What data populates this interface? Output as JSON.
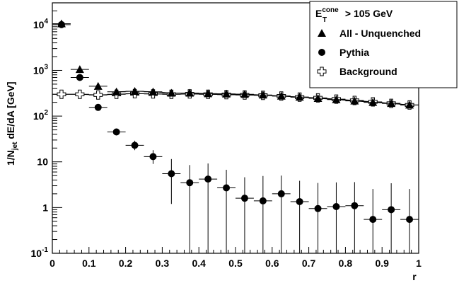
{
  "chart_data": {
    "type": "scatter",
    "title": "",
    "xlabel": "r",
    "ylabel_parts": {
      "pre": "1/N",
      "sub": "jet",
      "post": " dE/dA [GeV]"
    },
    "x_ticks": [
      "0",
      "0.1",
      "0.2",
      "0.3",
      "0.4",
      "0.5",
      "0.6",
      "0.7",
      "0.8",
      "0.9",
      "1"
    ],
    "y_ticks": [
      {
        "value": 0.1,
        "base": "10",
        "exp": "-1"
      },
      {
        "value": 1,
        "base": "1",
        "exp": ""
      },
      {
        "value": 10,
        "base": "10",
        "exp": ""
      },
      {
        "value": 100,
        "base": "10",
        "exp": "2"
      },
      {
        "value": 1000,
        "base": "10",
        "exp": "3"
      },
      {
        "value": 10000,
        "base": "10",
        "exp": "4"
      }
    ],
    "xlim": [
      0,
      1
    ],
    "ylim": [
      0.1,
      30000
    ],
    "y_scale": "log",
    "legend_placement": "top-right",
    "legend_header": {
      "pre": "E",
      "sup": "cone",
      "sub": "T",
      "post": " > 105 GeV"
    },
    "x": [
      0.025,
      0.075,
      0.125,
      0.175,
      0.225,
      0.275,
      0.325,
      0.375,
      0.425,
      0.475,
      0.525,
      0.575,
      0.625,
      0.675,
      0.725,
      0.775,
      0.825,
      0.875,
      0.925,
      0.975
    ],
    "series": [
      {
        "name": "All - Unquenched",
        "marker": "triangle",
        "values": [
          10500,
          1050,
          450,
          340,
          350,
          340,
          320,
          320,
          310,
          305,
          300,
          290,
          275,
          260,
          245,
          230,
          215,
          200,
          190,
          175
        ],
        "err_low": [
          0,
          0,
          0,
          0,
          0,
          0,
          0,
          0,
          0,
          0,
          0,
          0,
          0,
          0,
          0,
          0,
          0,
          0,
          0,
          0
        ],
        "err_high": [
          0,
          0,
          0,
          0,
          0,
          0,
          0,
          0,
          0,
          0,
          0,
          0,
          0,
          0,
          0,
          0,
          0,
          0,
          0,
          0
        ]
      },
      {
        "name": "Pythia",
        "marker": "circle",
        "values": [
          10000,
          700,
          155,
          45,
          23,
          13,
          5.5,
          3.5,
          4.2,
          2.7,
          1.6,
          1.4,
          2.0,
          1.35,
          0.95,
          1.05,
          1.1,
          0.55,
          0.9,
          0.55
        ],
        "err_low": [
          0,
          0,
          0,
          0,
          5,
          4,
          4.3,
          3.4,
          4.1,
          2.6,
          1.5,
          1.3,
          1.9,
          1.25,
          0.85,
          0.95,
          1.0,
          0.45,
          0.8,
          0.45
        ],
        "err_high": [
          0,
          0,
          0,
          0,
          6,
          5,
          6,
          5,
          5,
          4,
          3,
          3.5,
          3,
          2.5,
          2.5,
          2.5,
          2.5,
          2.0,
          2.5,
          2.0
        ]
      },
      {
        "name": "Background",
        "marker": "cross",
        "values": [
          300,
          300,
          290,
          300,
          310,
          305,
          300,
          305,
          300,
          295,
          290,
          285,
          275,
          260,
          250,
          235,
          220,
          205,
          190,
          175
        ],
        "err_low": [
          0,
          0,
          0,
          0,
          0,
          0,
          0,
          0,
          0,
          0,
          0,
          0,
          0,
          0,
          0,
          0,
          0,
          0,
          0,
          0
        ],
        "err_high": [
          0,
          0,
          0,
          0,
          0,
          0,
          0,
          0,
          0,
          0,
          0,
          0,
          0,
          0,
          0,
          0,
          0,
          0,
          0,
          0
        ]
      }
    ]
  }
}
